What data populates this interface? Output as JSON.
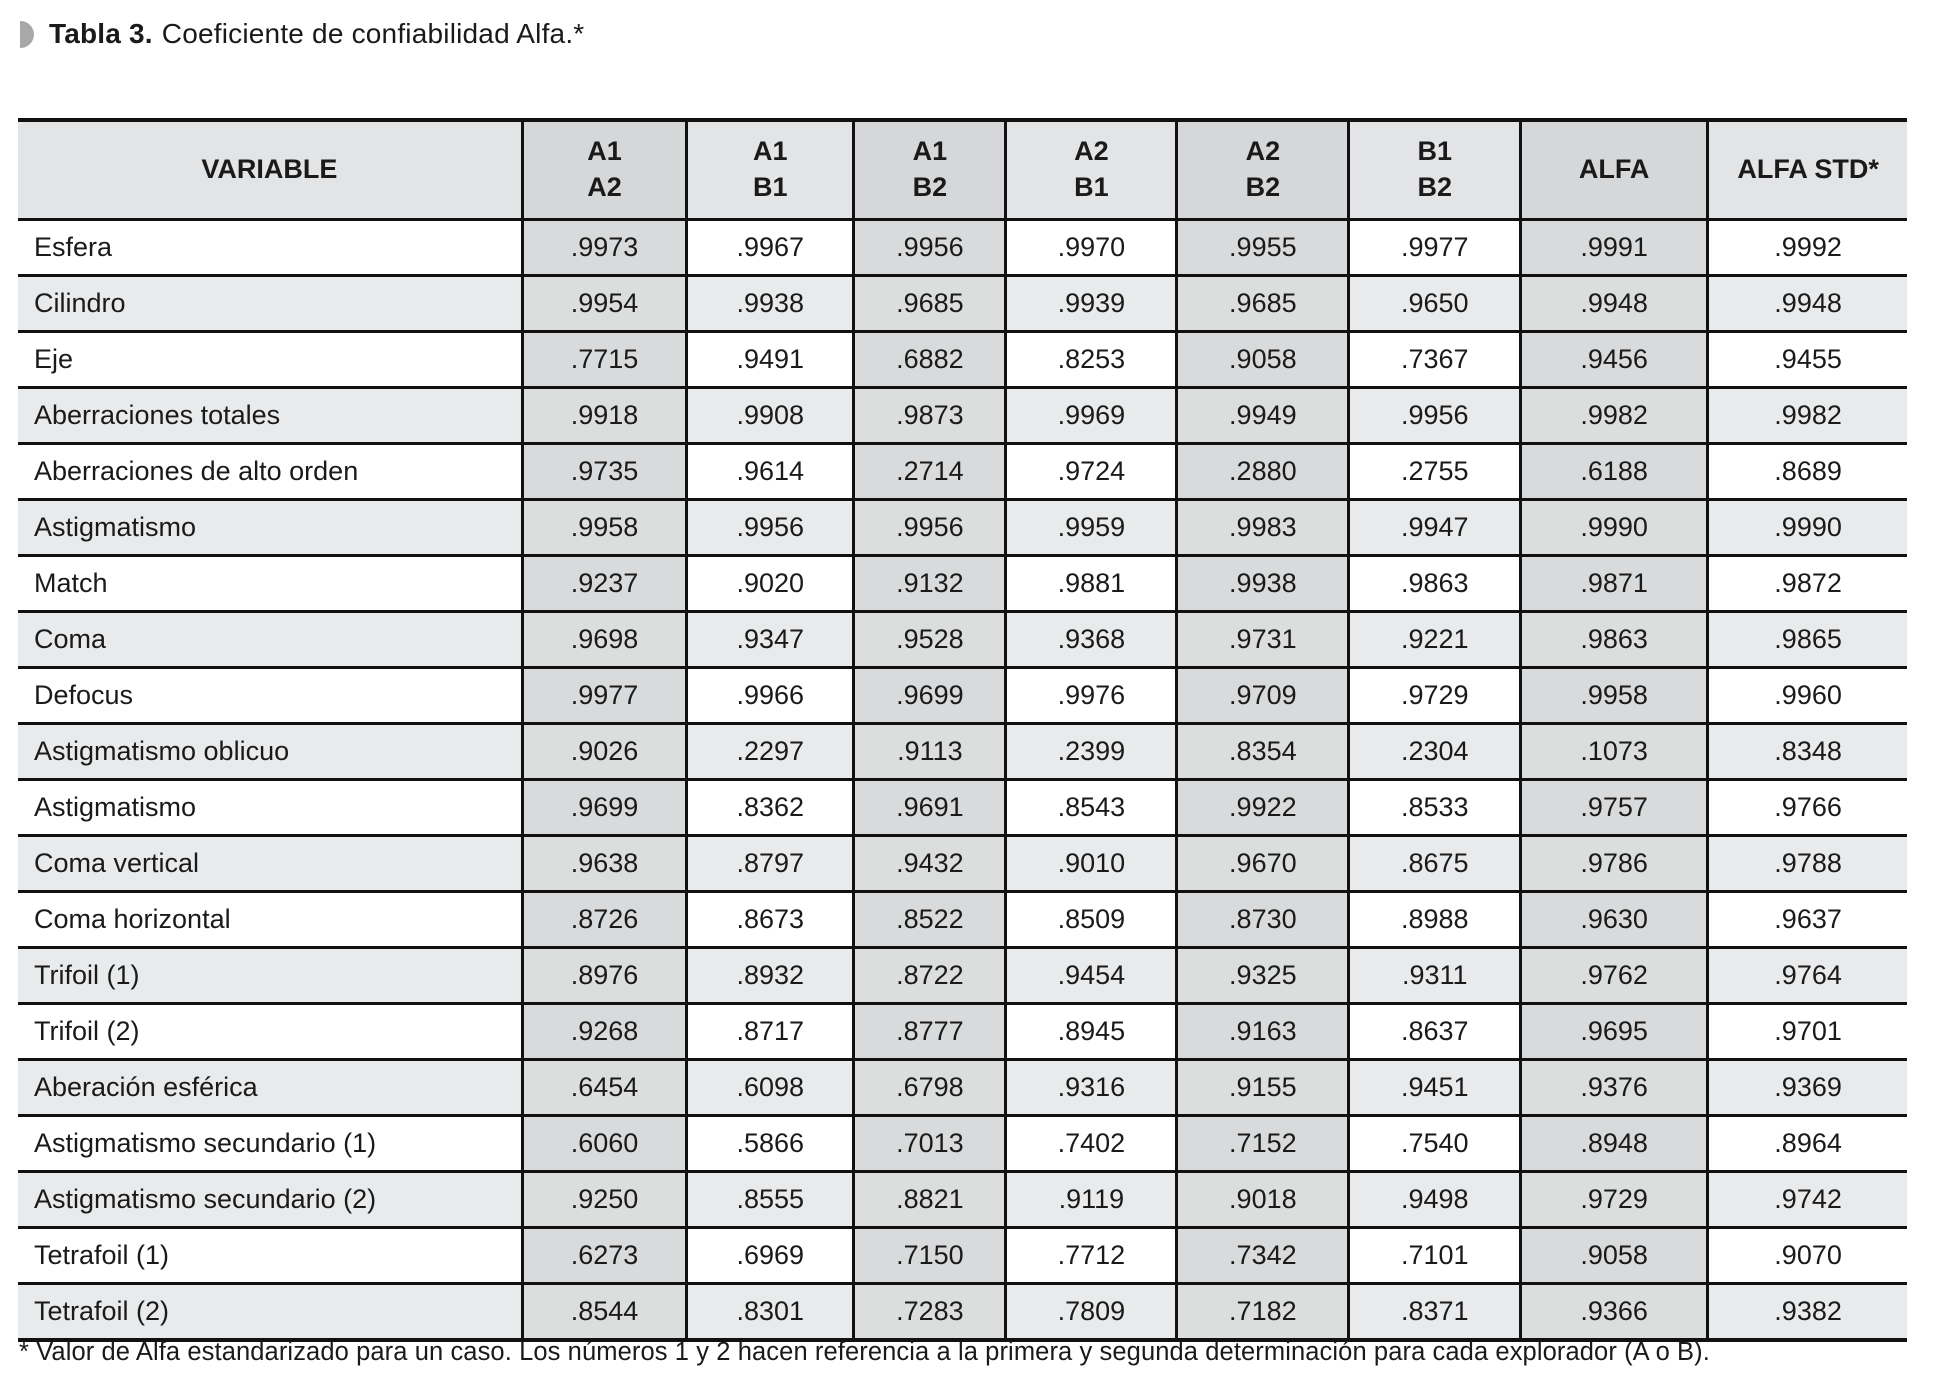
{
  "title": {
    "label": "Tabla 3.",
    "text": "Coeficiente de confiabilidad Alfa.*"
  },
  "table": {
    "columns": [
      {
        "lines": [
          "VARIABLE"
        ],
        "width_pct": 26.7,
        "header_shade": "light"
      },
      {
        "lines": [
          "A1",
          "A2"
        ],
        "width_pct": 8.7,
        "header_shade": "dark"
      },
      {
        "lines": [
          "A1",
          "B1"
        ],
        "width_pct": 8.85,
        "header_shade": "light"
      },
      {
        "lines": [
          "A1",
          "B2"
        ],
        "width_pct": 8.05,
        "header_shade": "dark"
      },
      {
        "lines": [
          "A2",
          "B1"
        ],
        "width_pct": 9.05,
        "header_shade": "light"
      },
      {
        "lines": [
          "A2",
          "B2"
        ],
        "width_pct": 9.1,
        "header_shade": "dark"
      },
      {
        "lines": [
          "B1",
          "B2"
        ],
        "width_pct": 9.1,
        "header_shade": "light"
      },
      {
        "lines": [
          "ALFA"
        ],
        "width_pct": 9.9,
        "header_shade": "dark"
      },
      {
        "lines": [
          "ALFA STD*"
        ],
        "width_pct": 10.55,
        "header_shade": "light"
      }
    ],
    "shaded_value_columns": [
      0,
      2,
      4,
      6
    ],
    "rows": [
      {
        "variable": "Esfera",
        "values": [
          ".9973",
          ".9967",
          ".9956",
          ".9970",
          ".9955",
          ".9977",
          ".9991",
          ".9992"
        ]
      },
      {
        "variable": "Cilindro",
        "values": [
          ".9954",
          ".9938",
          ".9685",
          ".9939",
          ".9685",
          ".9650",
          ".9948",
          ".9948"
        ]
      },
      {
        "variable": "Eje",
        "values": [
          ".7715",
          ".9491",
          ".6882",
          ".8253",
          ".9058",
          ".7367",
          ".9456",
          ".9455"
        ]
      },
      {
        "variable": "Aberraciones totales",
        "values": [
          ".9918",
          ".9908",
          ".9873",
          ".9969",
          ".9949",
          ".9956",
          ".9982",
          ".9982"
        ]
      },
      {
        "variable": "Aberraciones de alto orden",
        "values": [
          ".9735",
          ".9614",
          ".2714",
          ".9724",
          ".2880",
          ".2755",
          ".6188",
          ".8689"
        ]
      },
      {
        "variable": "Astigmatismo",
        "values": [
          ".9958",
          ".9956",
          ".9956",
          ".9959",
          ".9983",
          ".9947",
          ".9990",
          ".9990"
        ]
      },
      {
        "variable": "Match",
        "values": [
          ".9237",
          ".9020",
          ".9132",
          ".9881",
          ".9938",
          ".9863",
          ".9871",
          ".9872"
        ]
      },
      {
        "variable": "Coma",
        "values": [
          ".9698",
          ".9347",
          ".9528",
          ".9368",
          ".9731",
          ".9221",
          ".9863",
          ".9865"
        ]
      },
      {
        "variable": "Defocus",
        "values": [
          ".9977",
          ".9966",
          ".9699",
          ".9976",
          ".9709",
          ".9729",
          ".9958",
          ".9960"
        ]
      },
      {
        "variable": "Astigmatismo oblicuo",
        "values": [
          ".9026",
          ".2297",
          ".9113",
          ".2399",
          ".8354",
          ".2304",
          ".1073",
          ".8348"
        ]
      },
      {
        "variable": "Astigmatismo",
        "values": [
          ".9699",
          ".8362",
          ".9691",
          ".8543",
          ".9922",
          ".8533",
          ".9757",
          ".9766"
        ]
      },
      {
        "variable": "Coma vertical",
        "values": [
          ".9638",
          ".8797",
          ".9432",
          ".9010",
          ".9670",
          ".8675",
          ".9786",
          ".9788"
        ]
      },
      {
        "variable": "Coma horizontal",
        "values": [
          ".8726",
          ".8673",
          ".8522",
          ".8509",
          ".8730",
          ".8988",
          ".9630",
          ".9637"
        ]
      },
      {
        "variable": "Trifoil (1)",
        "values": [
          ".8976",
          ".8932",
          ".8722",
          ".9454",
          ".9325",
          ".9311",
          ".9762",
          ".9764"
        ]
      },
      {
        "variable": "Trifoil (2)",
        "values": [
          ".9268",
          ".8717",
          ".8777",
          ".8945",
          ".9163",
          ".8637",
          ".9695",
          ".9701"
        ]
      },
      {
        "variable": "Aberación esférica",
        "values": [
          ".6454",
          ".6098",
          ".6798",
          ".9316",
          ".9155",
          ".9451",
          ".9376",
          ".9369"
        ]
      },
      {
        "variable": "Astigmatismo secundario (1)",
        "values": [
          ".6060",
          ".5866",
          ".7013",
          ".7402",
          ".7152",
          ".7540",
          ".8948",
          ".8964"
        ]
      },
      {
        "variable": "Astigmatismo secundario (2)",
        "values": [
          ".9250",
          ".8555",
          ".8821",
          ".9119",
          ".9018",
          ".9498",
          ".9729",
          ".9742"
        ]
      },
      {
        "variable": "Tetrafoil (1)",
        "values": [
          ".6273",
          ".6969",
          ".7150",
          ".7712",
          ".7342",
          ".7101",
          ".9058",
          ".9070"
        ]
      },
      {
        "variable": "Tetrafoil (2)",
        "values": [
          ".8544",
          ".8301",
          ".7283",
          ".7809",
          ".7182",
          ".8371",
          ".9366",
          ".9382"
        ]
      }
    ]
  },
  "footnote": "* Valor de Alfa estandarizado para un caso. Los números 1 y 2 hacen referencia a la primera y segunda determinación para cada explorador (A o B).",
  "colors": {
    "border": "#111111",
    "header_light": "#e3e4e5",
    "header_dark": "#d6d7d8",
    "row_alt": "#e9eaeb",
    "col_shade": "#d9dadb",
    "col_shade_on_alt": "#dcdddd",
    "marker_gray": "#a6a8aa"
  }
}
